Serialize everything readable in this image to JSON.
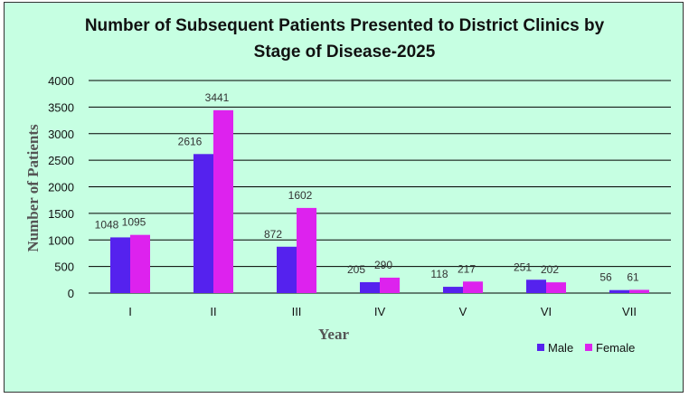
{
  "chart_data": {
    "type": "bar",
    "title_lines": [
      "Number of Subsequent Patients Presented to District Clinics by",
      "Stage of Disease-2025"
    ],
    "xlabel": "Year",
    "ylabel": "Number of Patients",
    "categories": [
      "I",
      "II",
      "III",
      "IV",
      "V",
      "VI",
      "VII"
    ],
    "series": [
      {
        "name": "Male",
        "color": "#5522ee",
        "values": [
          1048,
          2616,
          872,
          205,
          118,
          251,
          56
        ]
      },
      {
        "name": "Female",
        "color": "#dd22ee",
        "values": [
          1095,
          3441,
          1602,
          290,
          217,
          202,
          61
        ]
      }
    ],
    "ylim": [
      0,
      4000
    ],
    "yticks": [
      0,
      500,
      1000,
      1500,
      2000,
      2500,
      3000,
      3500,
      4000
    ],
    "grid": true,
    "legend_position": "bottom-right",
    "background_color": "#c6ffe2"
  }
}
